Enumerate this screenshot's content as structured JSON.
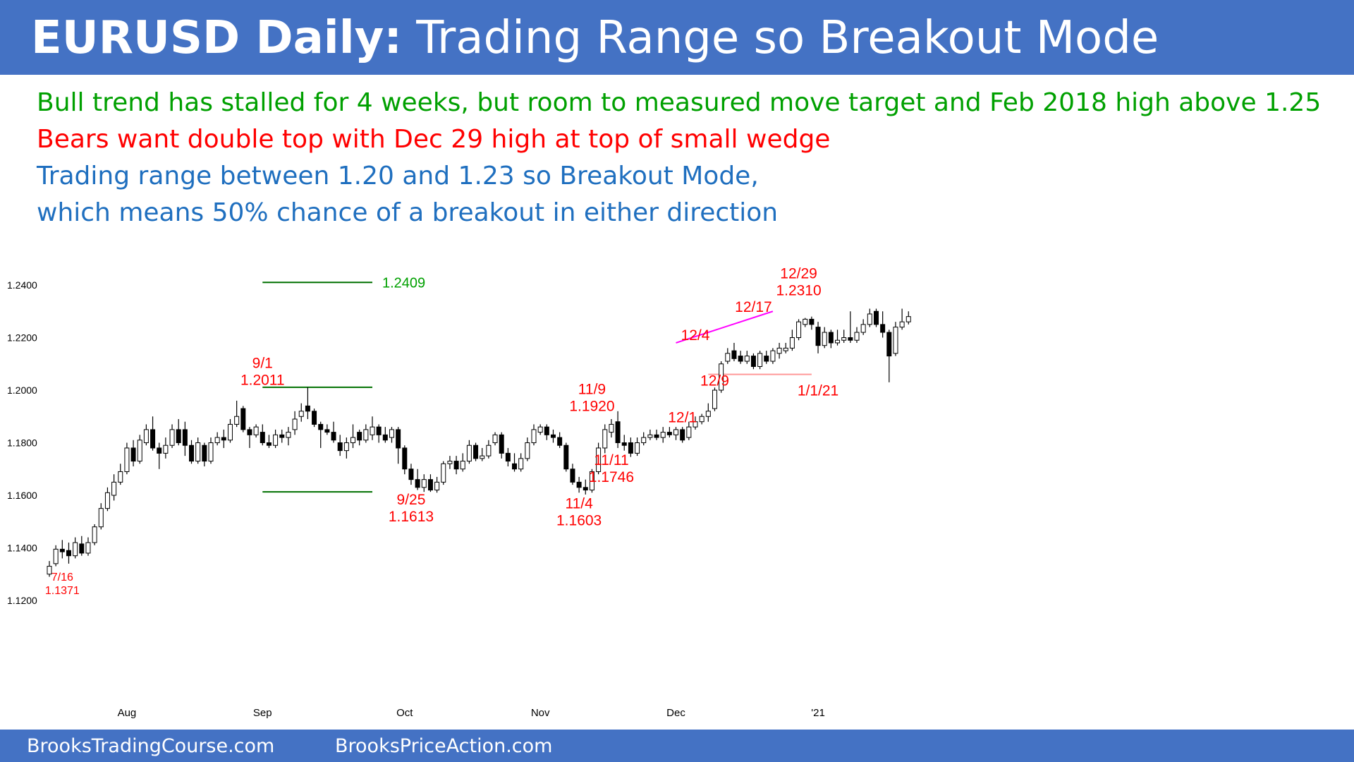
{
  "title": {
    "bold": "EURUSD Daily:",
    "rest": " Trading Range so Breakout Mode"
  },
  "subtitle_lines": [
    {
      "text": "Bull trend has stalled for 4 weeks, but room to measured move target and Feb 2018 high above 1.25",
      "color": "#00a000"
    },
    {
      "text": "Bears want double top with Dec 29 high at top of small wedge",
      "color": "#ff0000"
    },
    {
      "text": "Trading range between 1.20 and 1.23 so Breakout Mode,",
      "color": "#1f6fbf"
    },
    {
      "text": "which means 50% chance of a breakout in either direction",
      "color": "#1f6fbf"
    }
  ],
  "chart_data": {
    "type": "candlestick",
    "instrument": "EURUSD",
    "timeframe": "Daily",
    "y_ticks": [
      "1.2400",
      "1.2200",
      "1.2000",
      "1.1800",
      "1.1600",
      "1.1400",
      "1.1200"
    ],
    "y_tick_values": [
      1.24,
      1.22,
      1.2,
      1.18,
      1.16,
      1.14,
      1.12
    ],
    "ylim": [
      1.12,
      1.24
    ],
    "x_ticks": [
      {
        "label": "Aug",
        "day": 12
      },
      {
        "label": "Sep",
        "day": 33
      },
      {
        "label": "Oct",
        "day": 55
      },
      {
        "label": "Nov",
        "day": 76
      },
      {
        "label": "Dec",
        "day": 97
      },
      {
        "label": "'21",
        "day": 119
      }
    ],
    "candles": [
      [
        1.13,
        1.133,
        1.129,
        1.135
      ],
      [
        1.134,
        1.1395,
        1.133,
        1.141
      ],
      [
        1.1395,
        1.1385,
        1.136,
        1.143
      ],
      [
        1.139,
        1.137,
        1.134,
        1.142
      ],
      [
        1.137,
        1.142,
        1.136,
        1.144
      ],
      [
        1.1415,
        1.138,
        1.137,
        1.1445
      ],
      [
        1.138,
        1.142,
        1.137,
        1.144
      ],
      [
        1.142,
        1.148,
        1.141,
        1.149
      ],
      [
        1.148,
        1.155,
        1.147,
        1.157
      ],
      [
        1.155,
        1.161,
        1.154,
        1.163
      ],
      [
        1.16,
        1.165,
        1.158,
        1.168
      ],
      [
        1.165,
        1.169,
        1.164,
        1.172
      ],
      [
        1.169,
        1.178,
        1.168,
        1.18
      ],
      [
        1.178,
        1.173,
        1.171,
        1.181
      ],
      [
        1.173,
        1.181,
        1.172,
        1.183
      ],
      [
        1.18,
        1.185,
        1.179,
        1.187
      ],
      [
        1.185,
        1.178,
        1.177,
        1.19
      ],
      [
        1.178,
        1.176,
        1.17,
        1.18
      ],
      [
        1.176,
        1.179,
        1.174,
        1.182
      ],
      [
        1.179,
        1.185,
        1.178,
        1.187
      ],
      [
        1.185,
        1.18,
        1.179,
        1.189
      ],
      [
        1.185,
        1.179,
        1.175,
        1.188
      ],
      [
        1.179,
        1.173,
        1.172,
        1.181
      ],
      [
        1.173,
        1.18,
        1.172,
        1.182
      ],
      [
        1.179,
        1.173,
        1.171,
        1.18
      ],
      [
        1.173,
        1.18,
        1.172,
        1.182
      ],
      [
        1.18,
        1.182,
        1.179,
        1.184
      ],
      [
        1.182,
        1.181,
        1.178,
        1.185
      ],
      [
        1.181,
        1.187,
        1.18,
        1.189
      ],
      [
        1.187,
        1.19,
        1.186,
        1.196
      ],
      [
        1.193,
        1.185,
        1.184,
        1.194
      ],
      [
        1.185,
        1.183,
        1.178,
        1.186
      ],
      [
        1.183,
        1.186,
        1.182,
        1.187
      ],
      [
        1.184,
        1.18,
        1.179,
        1.187
      ],
      [
        1.18,
        1.179,
        1.178,
        1.183
      ],
      [
        1.179,
        1.183,
        1.178,
        1.185
      ],
      [
        1.183,
        1.182,
        1.18,
        1.185
      ],
      [
        1.182,
        1.184,
        1.179,
        1.186
      ],
      [
        1.185,
        1.189,
        1.183,
        1.192
      ],
      [
        1.19,
        1.192,
        1.188,
        1.195
      ],
      [
        1.194,
        1.192,
        1.189,
        1.2011
      ],
      [
        1.192,
        1.187,
        1.186,
        1.193
      ],
      [
        1.187,
        1.185,
        1.178,
        1.188
      ],
      [
        1.185,
        1.184,
        1.183,
        1.187
      ],
      [
        1.184,
        1.181,
        1.18,
        1.188
      ],
      [
        1.18,
        1.177,
        1.175,
        1.183
      ],
      [
        1.177,
        1.18,
        1.174,
        1.182
      ],
      [
        1.18,
        1.182,
        1.178,
        1.187
      ],
      [
        1.184,
        1.181,
        1.179,
        1.185
      ],
      [
        1.181,
        1.185,
        1.18,
        1.187
      ],
      [
        1.183,
        1.186,
        1.181,
        1.19
      ],
      [
        1.186,
        1.183,
        1.18,
        1.187
      ],
      [
        1.183,
        1.181,
        1.18,
        1.186
      ],
      [
        1.182,
        1.185,
        1.18,
        1.186
      ],
      [
        1.185,
        1.178,
        1.172,
        1.186
      ],
      [
        1.178,
        1.17,
        1.168,
        1.179
      ],
      [
        1.17,
        1.166,
        1.164,
        1.172
      ],
      [
        1.166,
        1.163,
        1.162,
        1.17
      ],
      [
        1.163,
        1.166,
        1.1613,
        1.168
      ],
      [
        1.166,
        1.162,
        1.1613,
        1.168
      ],
      [
        1.162,
        1.165,
        1.161,
        1.167
      ],
      [
        1.165,
        1.172,
        1.164,
        1.173
      ],
      [
        1.172,
        1.173,
        1.17,
        1.175
      ],
      [
        1.173,
        1.17,
        1.168,
        1.175
      ],
      [
        1.17,
        1.173,
        1.169,
        1.176
      ],
      [
        1.173,
        1.179,
        1.172,
        1.181
      ],
      [
        1.179,
        1.174,
        1.173,
        1.18
      ],
      [
        1.174,
        1.175,
        1.173,
        1.178
      ],
      [
        1.175,
        1.179,
        1.174,
        1.181
      ],
      [
        1.18,
        1.183,
        1.179,
        1.184
      ],
      [
        1.183,
        1.176,
        1.174,
        1.184
      ],
      [
        1.176,
        1.173,
        1.171,
        1.178
      ],
      [
        1.172,
        1.17,
        1.169,
        1.176
      ],
      [
        1.17,
        1.174,
        1.169,
        1.176
      ],
      [
        1.174,
        1.18,
        1.173,
        1.182
      ],
      [
        1.18,
        1.185,
        1.179,
        1.187
      ],
      [
        1.184,
        1.186,
        1.183,
        1.187
      ],
      [
        1.186,
        1.183,
        1.181,
        1.187
      ],
      [
        1.183,
        1.182,
        1.18,
        1.185
      ],
      [
        1.182,
        1.179,
        1.178,
        1.184
      ],
      [
        1.179,
        1.17,
        1.169,
        1.18
      ],
      [
        1.17,
        1.165,
        1.164,
        1.172
      ],
      [
        1.165,
        1.163,
        1.161,
        1.167
      ],
      [
        1.163,
        1.162,
        1.1603,
        1.166
      ],
      [
        1.162,
        1.169,
        1.161,
        1.17
      ],
      [
        1.169,
        1.178,
        1.168,
        1.18
      ],
      [
        1.178,
        1.185,
        1.176,
        1.187
      ],
      [
        1.184,
        1.187,
        1.182,
        1.189
      ],
      [
        1.188,
        1.18,
        1.178,
        1.192
      ],
      [
        1.18,
        1.179,
        1.177,
        1.183
      ],
      [
        1.18,
        1.176,
        1.1746,
        1.182
      ],
      [
        1.176,
        1.18,
        1.175,
        1.182
      ],
      [
        1.18,
        1.182,
        1.179,
        1.184
      ],
      [
        1.182,
        1.183,
        1.181,
        1.185
      ],
      [
        1.183,
        1.182,
        1.181,
        1.185
      ],
      [
        1.182,
        1.184,
        1.18,
        1.186
      ],
      [
        1.184,
        1.183,
        1.182,
        1.186
      ],
      [
        1.183,
        1.185,
        1.181,
        1.186
      ],
      [
        1.185,
        1.181,
        1.18,
        1.186
      ],
      [
        1.182,
        1.186,
        1.181,
        1.188
      ],
      [
        1.186,
        1.188,
        1.185,
        1.19
      ],
      [
        1.188,
        1.19,
        1.187,
        1.191
      ],
      [
        1.19,
        1.192,
        1.188,
        1.195
      ],
      [
        1.193,
        1.2,
        1.192,
        1.201
      ],
      [
        1.2,
        1.21,
        1.199,
        1.211
      ],
      [
        1.211,
        1.214,
        1.21,
        1.216
      ],
      [
        1.215,
        1.212,
        1.211,
        1.218
      ],
      [
        1.213,
        1.211,
        1.21,
        1.215
      ],
      [
        1.211,
        1.213,
        1.21,
        1.215
      ],
      [
        1.213,
        1.209,
        1.208,
        1.214
      ],
      [
        1.209,
        1.214,
        1.208,
        1.215
      ],
      [
        1.213,
        1.211,
        1.21,
        1.215
      ],
      [
        1.211,
        1.215,
        1.21,
        1.216
      ],
      [
        1.214,
        1.216,
        1.212,
        1.218
      ],
      [
        1.215,
        1.216,
        1.214,
        1.218
      ],
      [
        1.216,
        1.22,
        1.215,
        1.223
      ],
      [
        1.22,
        1.226,
        1.219,
        1.227
      ],
      [
        1.225,
        1.227,
        1.224,
        1.2275
      ],
      [
        1.227,
        1.225,
        1.223,
        1.228
      ],
      [
        1.224,
        1.217,
        1.214,
        1.226
      ],
      [
        1.217,
        1.222,
        1.216,
        1.224
      ],
      [
        1.222,
        1.218,
        1.216,
        1.223
      ],
      [
        1.218,
        1.219,
        1.217,
        1.223
      ],
      [
        1.219,
        1.22,
        1.218,
        1.223
      ],
      [
        1.22,
        1.219,
        1.218,
        1.23
      ],
      [
        1.219,
        1.222,
        1.218,
        1.224
      ],
      [
        1.222,
        1.225,
        1.221,
        1.227
      ],
      [
        1.225,
        1.229,
        1.224,
        1.231
      ],
      [
        1.23,
        1.225,
        1.224,
        1.231
      ],
      [
        1.225,
        1.222,
        1.22,
        1.23
      ],
      [
        1.222,
        1.213,
        1.203,
        1.223
      ],
      [
        1.214,
        1.224,
        1.213,
        1.226
      ],
      [
        1.224,
        1.226,
        1.223,
        1.231
      ],
      [
        1.226,
        1.228,
        1.225,
        1.23
      ]
    ],
    "lines": [
      {
        "name": "measured-move-target",
        "label": "1.2409",
        "value": 1.241,
        "x1": 33,
        "x2": 50,
        "color": "#007000"
      },
      {
        "name": "sep1-high",
        "value": 1.2011,
        "x1": 33,
        "x2": 50,
        "color": "#007000"
      },
      {
        "name": "sep25-low",
        "value": 1.1613,
        "x1": 33,
        "x2": 50,
        "color": "#007000"
      },
      {
        "name": "wedge-line",
        "p1": [
          97,
          1.218
        ],
        "p2": [
          112,
          1.23
        ],
        "color": "#ff00ff"
      },
      {
        "name": "dec9-low",
        "value": 1.206,
        "x1": 102,
        "x2": 118,
        "color": "#ff9999"
      }
    ],
    "annotations": [
      {
        "name": "jul16",
        "lines": [
          "7/16",
          "1.1371"
        ],
        "x": 2,
        "y": 1.1275,
        "size": 16
      },
      {
        "name": "sep1",
        "lines": [
          "9/1",
          "1.2011"
        ],
        "x": 33,
        "y": 1.2085,
        "size": 21
      },
      {
        "name": "sep25",
        "lines": [
          "9/25",
          "1.1613"
        ],
        "x": 56,
        "y": 1.1565,
        "size": 21
      },
      {
        "name": "nov4",
        "lines": [
          "11/4",
          "1.1603"
        ],
        "x": 82,
        "y": 1.155,
        "size": 21
      },
      {
        "name": "nov9",
        "lines": [
          "11/9",
          "1.1920"
        ],
        "x": 84,
        "y": 1.1985,
        "size": 21
      },
      {
        "name": "nov11",
        "lines": [
          "11/11",
          "1.1746"
        ],
        "x": 87,
        "y": 1.1715,
        "size": 21
      },
      {
        "name": "dec1",
        "lines": [
          "12/1"
        ],
        "x": 98,
        "y": 1.1878,
        "size": 21
      },
      {
        "name": "dec4",
        "lines": [
          "12/4"
        ],
        "x": 100,
        "y": 1.219,
        "size": 21
      },
      {
        "name": "dec9",
        "lines": [
          "12/9"
        ],
        "x": 103,
        "y": 1.2018,
        "size": 21
      },
      {
        "name": "dec17",
        "lines": [
          "12/17"
        ],
        "x": 109,
        "y": 1.2298,
        "size": 21
      },
      {
        "name": "dec29",
        "lines": [
          "12/29",
          "1.2310"
        ],
        "x": 116,
        "y": 1.2425,
        "size": 21
      },
      {
        "name": "jan1",
        "lines": [
          "1/1/21"
        ],
        "x": 119,
        "y": 1.198,
        "size": 21
      }
    ]
  },
  "footer": {
    "left": "BrooksTradingCourse.com",
    "right": "BrooksPriceAction.com"
  },
  "colors": {
    "band": "#4472c4",
    "bull_candle": "#ffffff",
    "bear_candle": "#000000",
    "annotation": "#ff0000",
    "target_label": "#00a000"
  }
}
